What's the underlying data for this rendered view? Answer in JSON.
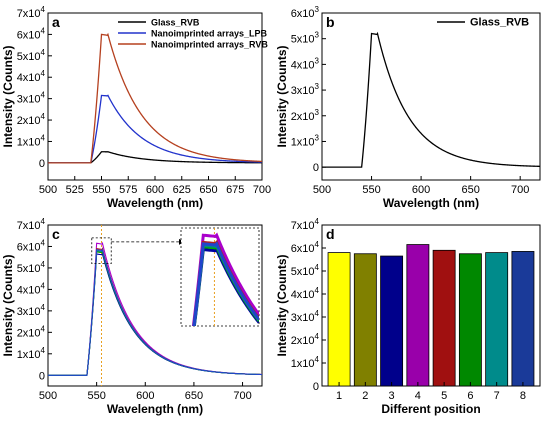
{
  "chart_data": [
    {
      "panel_label": "a",
      "type": "line",
      "xlabel": "Wavelength (nm)",
      "ylabel": "Intensity (Counts)",
      "xlim": [
        500,
        700
      ],
      "ylim": [
        -8000,
        70000
      ],
      "x_ticks": [
        "500",
        "525",
        "550",
        "575",
        "600",
        "625",
        "650",
        "675",
        "700"
      ],
      "y_ticks": [
        {
          "m": "0",
          "e": ""
        },
        {
          "m": "1x10",
          "e": "4"
        },
        {
          "m": "2x10",
          "e": "4"
        },
        {
          "m": "3x10",
          "e": "4"
        },
        {
          "m": "4x10",
          "e": "4"
        },
        {
          "m": "5x10",
          "e": "4"
        },
        {
          "m": "6x10",
          "e": "4"
        },
        {
          "m": "7x10",
          "e": "4"
        }
      ],
      "legend_position": "top-right",
      "series": [
        {
          "name": "Glass_RVB",
          "color": "#000000",
          "peak": 5200
        },
        {
          "name": "Nanoimprinted arrays_LPB",
          "color": "#2233cc",
          "peak": 31500
        },
        {
          "name": "Nanoimprinted arrays_RVB",
          "color": "#b5401f",
          "peak": 60000
        }
      ]
    },
    {
      "panel_label": "b",
      "type": "line",
      "xlabel": "Wavelength (nm)",
      "ylabel": "Intensity (Counts)",
      "xlim": [
        500,
        720
      ],
      "ylim": [
        -500,
        6000
      ],
      "x_ticks": [
        "500",
        "550",
        "600",
        "650",
        "700"
      ],
      "y_ticks": [
        {
          "m": "0",
          "e": ""
        },
        {
          "m": "1x10",
          "e": "3"
        },
        {
          "m": "2x10",
          "e": "3"
        },
        {
          "m": "3x10",
          "e": "3"
        },
        {
          "m": "4x10",
          "e": "3"
        },
        {
          "m": "5x10",
          "e": "3"
        },
        {
          "m": "6x10",
          "e": "3"
        }
      ],
      "legend_position": "top-right",
      "series": [
        {
          "name": "Glass_RVB",
          "color": "#000000",
          "peak": 5200
        }
      ]
    },
    {
      "panel_label": "c",
      "type": "line",
      "xlabel": "Wavelength (nm)",
      "ylabel": "Intensity (Counts)",
      "xlim": [
        500,
        720
      ],
      "ylim": [
        -5000,
        70000
      ],
      "x_ticks": [
        "500",
        "550",
        "600",
        "650",
        "700"
      ],
      "y_ticks": [
        {
          "m": "0",
          "e": ""
        },
        {
          "m": "1x10",
          "e": "4"
        },
        {
          "m": "2x10",
          "e": "4"
        },
        {
          "m": "3x10",
          "e": "4"
        },
        {
          "m": "4x10",
          "e": "4"
        },
        {
          "m": "5x10",
          "e": "4"
        },
        {
          "m": "6x10",
          "e": "4"
        },
        {
          "m": "7x10",
          "e": "4"
        }
      ],
      "marker_line_x": 555,
      "series": [
        {
          "color": "#ffff00",
          "peak": 58000
        },
        {
          "color": "#808000",
          "peak": 57500
        },
        {
          "color": "#0000a0",
          "peak": 56500
        },
        {
          "color": "#aa00cc",
          "peak": 61500
        },
        {
          "color": "#b02020",
          "peak": 59000
        },
        {
          "color": "#00aa00",
          "peak": 57500
        },
        {
          "color": "#008888",
          "peak": 58000
        },
        {
          "color": "#2244cc",
          "peak": 58500
        }
      ]
    },
    {
      "panel_label": "d",
      "type": "bar",
      "xlabel": "Different position",
      "ylabel": "Intensity (Counts)",
      "ylim": [
        0,
        70000
      ],
      "categories": [
        "1",
        "2",
        "3",
        "4",
        "5",
        "6",
        "7",
        "8"
      ],
      "values": [
        58000,
        57500,
        56500,
        61500,
        59000,
        57500,
        58000,
        58500
      ],
      "colors": [
        "#ffff00",
        "#808000",
        "#00008b",
        "#9900aa",
        "#a01010",
        "#008800",
        "#008b8b",
        "#1a3a99"
      ],
      "y_ticks": [
        {
          "m": "0",
          "e": ""
        },
        {
          "m": "1x10",
          "e": "4"
        },
        {
          "m": "2x10",
          "e": "4"
        },
        {
          "m": "3x10",
          "e": "4"
        },
        {
          "m": "4x10",
          "e": "4"
        },
        {
          "m": "5x10",
          "e": "4"
        },
        {
          "m": "6x10",
          "e": "4"
        },
        {
          "m": "7x10",
          "e": "4"
        }
      ]
    }
  ]
}
